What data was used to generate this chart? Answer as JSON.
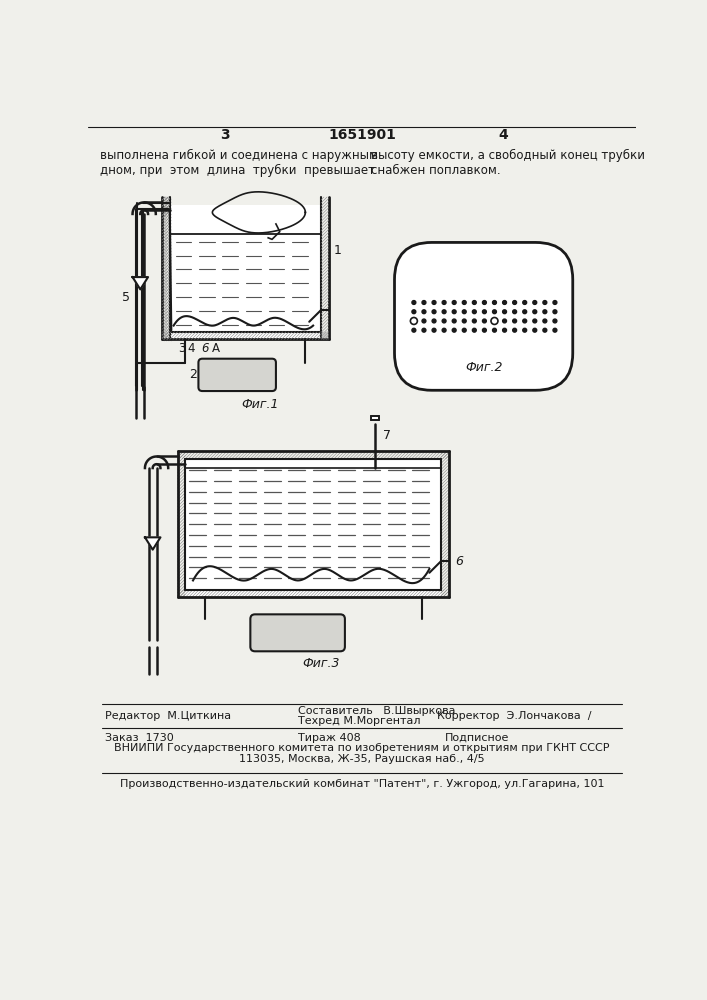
{
  "page_num_left": "3",
  "page_num_center": "1651901",
  "page_num_right": "4",
  "text_top_left": "выполнена гибкой и соединена с наружным\nдном, при  этом  длина  трубки  превышает",
  "text_top_right": "высоту емкости, а свободный конец трубки\nснабжен поплавком.",
  "fig1_label": "Фиг.1",
  "fig2_label": "Фиг.2",
  "fig3_label": "Фиг.3",
  "editor_line": "Редактор  М.Циткина",
  "compositor_line": "Составитель   В.Швыркова",
  "techred_line": "Техред М.Моргентал",
  "corrector_line": "Корректор  Э.Лончакова  /",
  "order_line": "Заказ  1730",
  "tirazh_line": "Тираж 408",
  "podpisnoe_line": "Подписное",
  "vniiipi_line": "ВНИИПИ Государственного комитета по изобретениям и открытиям при ГКНТ СССР",
  "address_line": "113035, Москва, Ж-35, Раушская наб., 4/5",
  "publisher_line": "Производственно-издательский комбинат \"Патент\", г. Ужгород, ул.Гагарина, 101",
  "bg_color": "#f0f0eb",
  "line_color": "#1a1a1a",
  "text_color": "#1a1a1a",
  "hatch_color": "#555555"
}
